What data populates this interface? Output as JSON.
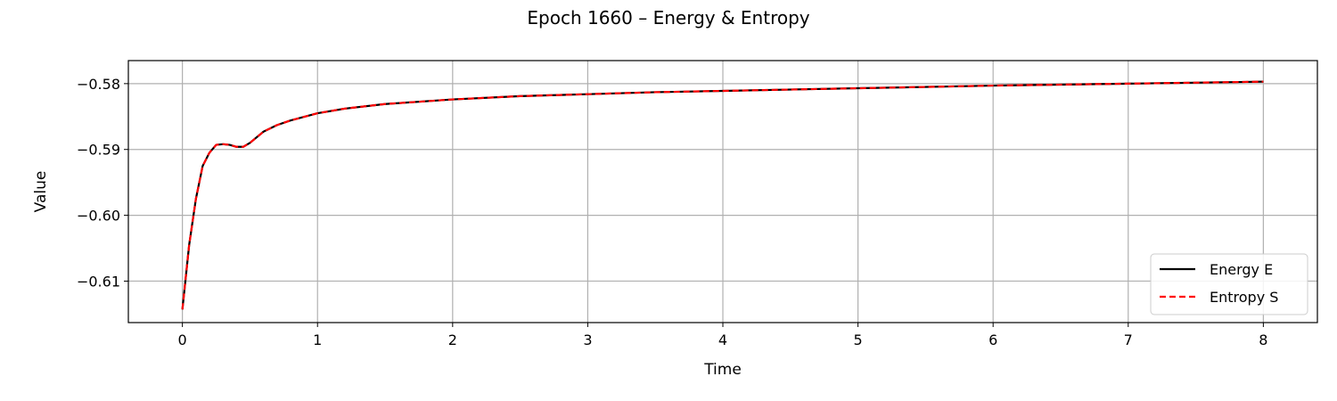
{
  "chart_data": {
    "type": "line",
    "title": "Epoch 1660 – Energy & Entropy",
    "xlabel": "Time",
    "ylabel": "Value",
    "xlim": [
      -0.4,
      8.4
    ],
    "ylim": [
      -0.6163,
      -0.5765
    ],
    "xticks": [
      0,
      1,
      2,
      3,
      4,
      5,
      6,
      7,
      8
    ],
    "yticks": [
      -0.61,
      -0.6,
      -0.59,
      -0.58
    ],
    "xtick_labels": [
      "0",
      "1",
      "2",
      "3",
      "4",
      "5",
      "6",
      "7",
      "8"
    ],
    "ytick_labels": [
      "−0.61",
      "−0.60",
      "−0.59",
      "−0.58"
    ],
    "grid": true,
    "legend_position": "lower-right",
    "x": [
      0,
      0.05,
      0.1,
      0.15,
      0.2,
      0.25,
      0.3,
      0.35,
      0.4,
      0.45,
      0.5,
      0.6,
      0.7,
      0.8,
      1.0,
      1.2,
      1.5,
      2.0,
      2.5,
      3.0,
      3.5,
      4.0,
      5.0,
      6.0,
      7.0,
      8.0
    ],
    "series": [
      {
        "name": "Energy E",
        "color": "#000000",
        "style": "solid",
        "values": [
          -0.6143,
          -0.6045,
          -0.5975,
          -0.5925,
          -0.5905,
          -0.5893,
          -0.5892,
          -0.5893,
          -0.5896,
          -0.5896,
          -0.589,
          -0.5873,
          -0.5863,
          -0.5856,
          -0.5845,
          -0.5838,
          -0.5831,
          -0.5824,
          -0.5819,
          -0.5816,
          -0.5813,
          -0.5811,
          -0.5807,
          -0.5803,
          -0.58,
          -0.5797
        ]
      },
      {
        "name": "Entropy S",
        "color": "#ff0000",
        "style": "dashed",
        "values": [
          -0.6143,
          -0.6045,
          -0.5975,
          -0.5925,
          -0.5905,
          -0.5893,
          -0.5892,
          -0.5893,
          -0.5896,
          -0.5896,
          -0.589,
          -0.5873,
          -0.5863,
          -0.5856,
          -0.5845,
          -0.5838,
          -0.5831,
          -0.5824,
          -0.5819,
          -0.5816,
          -0.5813,
          -0.5811,
          -0.5807,
          -0.5803,
          -0.58,
          -0.5797
        ]
      }
    ]
  }
}
